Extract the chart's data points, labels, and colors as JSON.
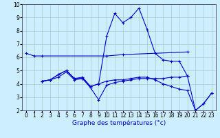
{
  "background_color": "#cceeff",
  "grid_color": "#aacccc",
  "line_color": "#0000cc",
  "xlabel_color": "#0000cc",
  "title": "Graphe des températures (°c)",
  "xlim": [
    -0.5,
    23.5
  ],
  "ylim": [
    2,
    10
  ],
  "xticks": [
    0,
    1,
    2,
    3,
    4,
    5,
    6,
    7,
    8,
    9,
    10,
    11,
    12,
    13,
    14,
    15,
    16,
    17,
    18,
    19,
    20,
    21,
    22,
    23
  ],
  "yticks": [
    2,
    3,
    4,
    5,
    6,
    7,
    8,
    9,
    10
  ],
  "tick_fontsize": 5.5,
  "xlabel_fontsize": 6.5,
  "series": [
    {
      "x": [
        0,
        1,
        2,
        10,
        12,
        20
      ],
      "y": [
        6.3,
        6.1,
        6.1,
        6.1,
        6.2,
        6.4
      ]
    },
    {
      "x": [
        2,
        3,
        4,
        5,
        6,
        7,
        8,
        9,
        10,
        11,
        12,
        13,
        14,
        15,
        16,
        17,
        18,
        19,
        20
      ],
      "y": [
        4.2,
        4.3,
        4.7,
        5.0,
        4.4,
        4.5,
        3.8,
        4.0,
        7.6,
        9.3,
        8.6,
        9.0,
        9.7,
        8.1,
        6.3,
        5.8,
        5.7,
        5.7,
        4.6
      ]
    },
    {
      "x": [
        2,
        3,
        4,
        5,
        6,
        7,
        8,
        9,
        10,
        11,
        12,
        13,
        14,
        15,
        16,
        17,
        18,
        19,
        20,
        21,
        22,
        23
      ],
      "y": [
        4.2,
        4.3,
        4.7,
        5.0,
        4.4,
        4.4,
        3.8,
        4.0,
        4.2,
        4.3,
        4.3,
        4.4,
        4.5,
        4.5,
        4.3,
        4.0,
        3.8,
        3.6,
        3.5,
        2.0,
        2.5,
        3.3
      ]
    },
    {
      "x": [
        2,
        3,
        4,
        5,
        6,
        7,
        8,
        9,
        10,
        11,
        12,
        13,
        14,
        15,
        16,
        17,
        18,
        19,
        20,
        21,
        22,
        23
      ],
      "y": [
        4.2,
        4.3,
        4.5,
        4.9,
        4.3,
        4.4,
        3.7,
        2.8,
        3.9,
        4.1,
        4.2,
        4.3,
        4.4,
        4.4,
        4.4,
        4.4,
        4.5,
        4.5,
        4.6,
        2.0,
        2.5,
        3.3
      ]
    }
  ]
}
